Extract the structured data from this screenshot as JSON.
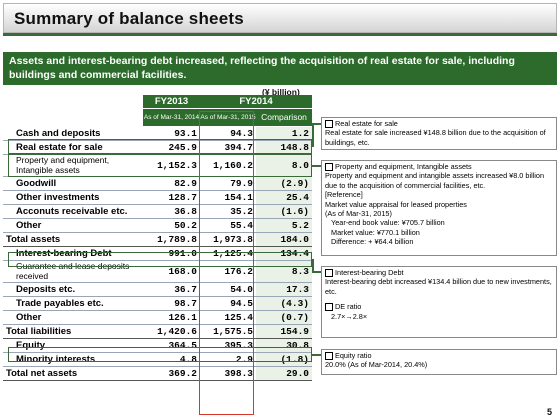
{
  "title": "Summary of balance sheets",
  "subtitle": "Assets and interest-bearing debt increased, reflecting the acquisition of real estate for sale, including buildings and commercial facilities.",
  "unit": "(¥ billion)",
  "header": {
    "fy2013": "FY2013",
    "fy2014": "FY2014",
    "date2014": "As of Mar-31, 2014",
    "date2015": "As of Mar-31, 2015",
    "comparison": "Comparison"
  },
  "rows": [
    {
      "label": "Cash and deposits",
      "fy2013": "93.1",
      "fy2014": "94.3",
      "comparison": "1.2"
    },
    {
      "label": "Real estate for sale",
      "fy2013": "245.9",
      "fy2014": "394.7",
      "comparison": "148.8"
    },
    {
      "label": "Property and equipment, Intangible assets",
      "fy2013": "1,152.3",
      "fy2014": "1,160.2",
      "comparison": "8.0"
    },
    {
      "label": "Goodwill",
      "fy2013": "82.9",
      "fy2014": "79.9",
      "comparison": "(2.9)"
    },
    {
      "label": "Other investments",
      "fy2013": "128.7",
      "fy2014": "154.1",
      "comparison": "25.4"
    },
    {
      "label": "Acconuts receivable etc.",
      "fy2013": "36.8",
      "fy2014": "35.2",
      "comparison": "(1.6)"
    },
    {
      "label": "Other",
      "fy2013": "50.2",
      "fy2014": "55.4",
      "comparison": "5.2"
    },
    {
      "label": "Total assets",
      "fy2013": "1,789.8",
      "fy2014": "1,973.8",
      "comparison": "184.0"
    },
    {
      "label": "Interest-bearing Debt",
      "fy2013": "991.0",
      "fy2014": "1,125.4",
      "comparison": "134.4"
    },
    {
      "label": "Guarantee and lease deposits received",
      "fy2013": "168.0",
      "fy2014": "176.2",
      "comparison": "8.3"
    },
    {
      "label": "Deposits etc.",
      "fy2013": "36.7",
      "fy2014": "54.0",
      "comparison": "17.3"
    },
    {
      "label": "Trade payables etc.",
      "fy2013": "98.7",
      "fy2014": "94.5",
      "comparison": "(4.3)"
    },
    {
      "label": "Other",
      "fy2013": "126.1",
      "fy2014": "125.4",
      "comparison": "(0.7)"
    },
    {
      "label": "Total liabilities",
      "fy2013": "1,420.6",
      "fy2014": "1,575.5",
      "comparison": "154.9"
    },
    {
      "label": "Equity",
      "fy2013": "364.5",
      "fy2014": "395.3",
      "comparison": "30.8"
    },
    {
      "label": "Minority interests",
      "fy2013": "4.8",
      "fy2014": "2.9",
      "comparison": "(1.8)"
    },
    {
      "label": "Total net assets",
      "fy2013": "369.2",
      "fy2014": "398.3",
      "comparison": "29.0"
    }
  ],
  "notes": {
    "real_estate": {
      "heading": "Real estate for sale",
      "text": "Real estate for sale increased ¥148.8 billion due to the acquisition of buildings, etc."
    },
    "property": {
      "heading": "Property and equipment, Intangible assets",
      "text": "Property and equipment and intangible assets increased ¥8.0 billion due to the acquisition of commercial facilities, etc.",
      "reference": "[Reference]",
      "market_value": "Market value appraisal for leased properties",
      "as_of": "(As of Mar-31, 2015)",
      "year_end": "Year-end book value: ¥705.7 billion",
      "market": "Market value: ¥770.1 billion",
      "difference": "Difference: + ¥64.4 billion"
    },
    "debt": {
      "heading": "Interest-bearing Debt",
      "text": "Interest-bearing debt increased ¥134.4 billion due to new investments, etc.",
      "de_heading": "DE ratio",
      "de_value": "2.7×→2.8×"
    },
    "equity": {
      "heading": "Equity ratio",
      "text": "20.0% (As of Mar-2014, 20.4%)"
    }
  },
  "page_number": "5"
}
